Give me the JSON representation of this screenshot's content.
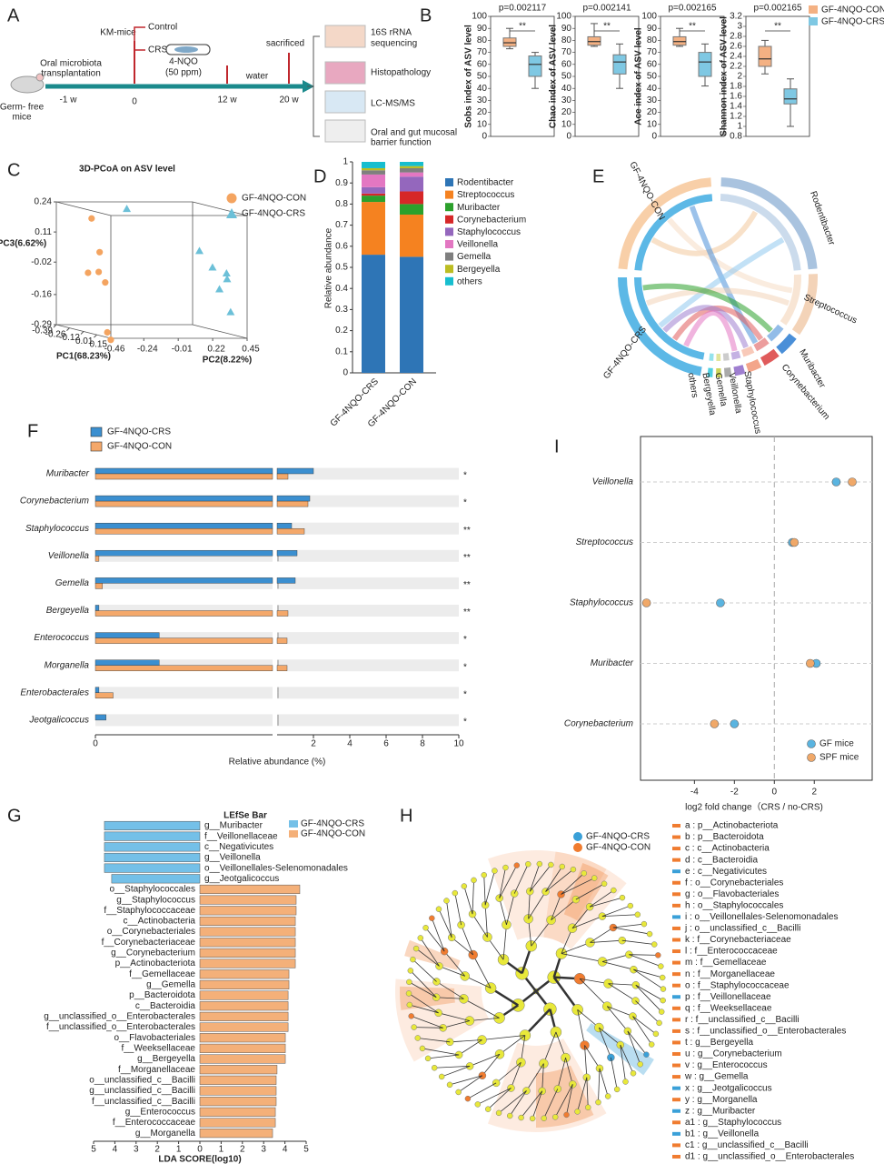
{
  "panel_labels": [
    "A",
    "B",
    "C",
    "D",
    "E",
    "F",
    "G",
    "H",
    "I"
  ],
  "diagram_a": {
    "mouse": [
      "Germ- free",
      "mice"
    ],
    "timeline": [
      "-1 w",
      "0",
      "12 w",
      "20 w"
    ],
    "transplant": [
      "Oral microbiota",
      "transplantation"
    ],
    "km": "KM-mice",
    "groups": [
      "Control",
      "CRS"
    ],
    "treatment": [
      "4-NQO",
      "(50 ppm)"
    ],
    "water": "water",
    "sacrificed": "sacrificed",
    "analyses": [
      [
        "16S rRNA",
        "sequencing"
      ],
      [
        "Histopathology"
      ],
      [
        "LC-MS/MS"
      ],
      [
        "Oral and gut mucosal",
        "barrier function"
      ]
    ]
  },
  "chart_data": [
    {
      "type": "box",
      "title": "p=0.002117",
      "y_label": "Sobs index of ASV level",
      "ylim": [
        0,
        100
      ],
      "yticks": [
        0,
        10,
        20,
        30,
        40,
        50,
        60,
        70,
        80,
        90,
        100
      ],
      "significance": "**",
      "series": [
        {
          "color": "#f4b183",
          "min": 73,
          "q1": 75,
          "median": 78,
          "q3": 82,
          "max": 90
        },
        {
          "color": "#7fc8e3",
          "min": 40,
          "q1": 50,
          "median": 60,
          "q3": 67,
          "max": 70
        }
      ]
    },
    {
      "type": "box",
      "title": "p=0.002141",
      "y_label": "Chao index of ASV level",
      "ylim": [
        0,
        100
      ],
      "yticks": [
        0,
        10,
        20,
        30,
        40,
        50,
        60,
        70,
        80,
        90,
        100
      ],
      "significance": "**",
      "series": [
        {
          "color": "#f4b183",
          "min": 75,
          "q1": 76,
          "median": 79,
          "q3": 83,
          "max": 94
        },
        {
          "color": "#7fc8e3",
          "min": 40,
          "q1": 52,
          "median": 62,
          "q3": 68,
          "max": 77
        }
      ]
    },
    {
      "type": "box",
      "title": "p=0.002165",
      "y_label": "Ace index of ASV level",
      "ylim": [
        0,
        100
      ],
      "yticks": [
        0,
        10,
        20,
        30,
        40,
        50,
        60,
        70,
        80,
        90,
        100
      ],
      "significance": "**",
      "series": [
        {
          "color": "#f4b183",
          "min": 75,
          "q1": 76,
          "median": 79,
          "q3": 83,
          "max": 90
        },
        {
          "color": "#7fc8e3",
          "min": 42,
          "q1": 50,
          "median": 62,
          "q3": 70,
          "max": 77
        }
      ]
    },
    {
      "type": "box",
      "title": "p=0.002165",
      "y_label": "Shannon index of ASV level",
      "ylim": [
        0.8,
        3.2
      ],
      "yticks": [
        0.8,
        1,
        1.2,
        1.4,
        1.6,
        1.8,
        2,
        2.2,
        2.4,
        2.6,
        2.8,
        3,
        3.2
      ],
      "significance": "**",
      "series": [
        {
          "name": "GF-4NQO-CON",
          "color": "#f4b183",
          "min": 2.05,
          "q1": 2.2,
          "median": 2.35,
          "q3": 2.6,
          "max": 2.72
        },
        {
          "name": "GF-4NQO-CRS",
          "color": "#7fc8e3",
          "min": 1.0,
          "q1": 1.45,
          "median": 1.55,
          "q3": 1.75,
          "max": 1.95
        }
      ]
    },
    {
      "type": "scatter3d",
      "title": "3D-PCoA on ASV level",
      "x_label": "PC1(68.23%)",
      "y_label": "PC2(8.22%)",
      "z_label": "PC3(6.62%)",
      "xlim": [
        -0.39,
        0.15
      ],
      "xticks": [
        -0.39,
        -0.26,
        -0.12,
        0.01,
        0.15
      ],
      "ylim": [
        -0.46,
        0.45
      ],
      "yticks": [
        -0.46,
        -0.24,
        -0.01,
        0.22,
        0.45
      ],
      "zlim": [
        -0.29,
        0.24
      ],
      "zticks": [
        0.24,
        0.11,
        -0.02,
        -0.16,
        -0.29
      ],
      "series": [
        {
          "name": "GF-4NQO-CON",
          "color": "#f4a460",
          "marker": "circle",
          "x": [
            -0.1,
            -0.05,
            0.0,
            0.05,
            -0.15,
            0.1,
            0.12
          ],
          "y": [
            -0.42,
            -0.4,
            -0.44,
            -0.43,
            -0.41,
            -0.45,
            -0.44
          ],
          "z": [
            0.2,
            0.06,
            -0.02,
            -0.06,
            -0.04,
            -0.27,
            -0.3
          ]
        },
        {
          "name": "GF-4NQO-CRS",
          "color": "#6cc0d8",
          "marker": "triangle",
          "x": [
            -0.3,
            -0.1,
            0.0,
            0.1,
            0.05,
            -0.05,
            0.12
          ],
          "y": [
            -0.05,
            0.3,
            0.32,
            0.35,
            0.38,
            0.4,
            0.36
          ],
          "z": [
            0.22,
            0.06,
            0.0,
            -0.04,
            -0.02,
            -0.1,
            -0.18
          ]
        }
      ]
    },
    {
      "type": "stacked_bar",
      "y_label": "Relative abundance",
      "categories": [
        "GF-4NQO-CRS",
        "GF-4NQO-CON"
      ],
      "ylim": [
        0,
        1
      ],
      "yticks": [
        0,
        0.1,
        0.2,
        0.3,
        0.4,
        0.5,
        0.6,
        0.7,
        0.8,
        0.9,
        1
      ],
      "series": [
        {
          "name": "Rodentibacter",
          "color": "#2e75b6",
          "values": [
            0.56,
            0.55
          ]
        },
        {
          "name": "Streptococcus",
          "color": "#f58220",
          "values": [
            0.25,
            0.2
          ]
        },
        {
          "name": "Muribacter",
          "color": "#2ca02c",
          "values": [
            0.03,
            0.05
          ]
        },
        {
          "name": "Corynebacterium",
          "color": "#d62728",
          "values": [
            0.01,
            0.06
          ]
        },
        {
          "name": "Staphylococcus",
          "color": "#9467bd",
          "values": [
            0.03,
            0.07
          ]
        },
        {
          "name": "Veillonella",
          "color": "#e377c2",
          "values": [
            0.06,
            0.02
          ]
        },
        {
          "name": "Gemella",
          "color": "#7f7f7f",
          "values": [
            0.02,
            0.02
          ]
        },
        {
          "name": "Bergeyella",
          "color": "#bcbd22",
          "values": [
            0.01,
            0.01
          ]
        },
        {
          "name": "others",
          "color": "#17becf",
          "values": [
            0.03,
            0.02
          ]
        }
      ]
    },
    {
      "type": "broken_hbar",
      "x_label": "Relative abundance (%)",
      "categories": [
        "Muribacter",
        "Corynebacterium",
        "Staphylococcus",
        "Veillonella",
        "Gemella",
        "Bergeyella",
        "Enterococcus",
        "Morganella",
        "Enterobacterales",
        "Jeotgalicoccus"
      ],
      "significance": [
        "*",
        "*",
        "**",
        "**",
        "**",
        "**",
        "*",
        "*",
        "*",
        "*"
      ],
      "xlim": [
        0,
        0.5
      ],
      "xticks": [
        0
      ],
      "x2lim": [
        0,
        10
      ],
      "x2ticks": [
        2,
        4,
        6,
        8,
        10
      ],
      "series": [
        {
          "name": "GF-4NQO-CRS",
          "color": "#3b8fd0",
          "values": [
            2.0,
            1.8,
            0.8,
            1.1,
            1.0,
            0.01,
            0.18,
            0.18,
            0.01,
            0.03
          ]
        },
        {
          "name": "GF-4NQO-CON",
          "color": "#f4a86a",
          "values": [
            0.6,
            1.7,
            1.5,
            0.01,
            0.02,
            0.6,
            0.55,
            0.55,
            0.05,
            0
          ]
        }
      ]
    },
    {
      "type": "dot",
      "x_label": "log2 fold change（CRS / no-CRS)",
      "categories": [
        "Veillonella",
        "Streptococcus",
        "Staphylococcus",
        "Muribacter",
        "Corynebacterium"
      ],
      "xlim": [
        -6.7,
        4.9
      ],
      "xticks": [
        -4,
        -2,
        0,
        2
      ],
      "legend": "lower right",
      "series": [
        {
          "name": "GF mice",
          "color": "#5ab4e0",
          "values": [
            3.1,
            0.9,
            -2.7,
            2.1,
            -2.0
          ]
        },
        {
          "name": "SPF mice",
          "color": "#f0a868",
          "values": [
            3.9,
            1.0,
            -6.4,
            1.8,
            -3.0
          ]
        }
      ]
    },
    {
      "type": "diverging_hbar",
      "title": "LEfSe Bar",
      "x_label": "LDA SCORE(log10)",
      "xlim": [
        -5,
        5
      ],
      "xticks": [
        {
          "value": -5,
          "label": "5"
        },
        {
          "value": -4,
          "label": "4"
        },
        {
          "value": -3,
          "label": "3"
        },
        {
          "value": -2,
          "label": "2"
        },
        {
          "value": -1,
          "label": "1"
        },
        0,
        1,
        2,
        3,
        4,
        5
      ],
      "series": [
        {
          "name": "GF-4NQO-CRS",
          "color": "#74c0e8"
        },
        {
          "name": "GF-4NQO-CON",
          "color": "#f4b079"
        }
      ],
      "categories": [
        "g__Muribacter",
        "f__Veillonellaceae",
        "c__Negativicutes",
        "g__Veillonella",
        "o__Veillonellales-Selenomonadales",
        "g__Jeotgalicoccus",
        "o__Staphylococcales",
        "g__Staphylococcus",
        "f__Staphylococcaceae",
        "c__Actinobacteria",
        "o__Corynebacteriales",
        "f__Corynebacteriaceae",
        "g__Corynebacterium",
        "p__Actinobacteriota",
        "f__Gemellaceae",
        "g__Gemella",
        "p__Bacteroidota",
        "c__Bacteroidia",
        "g__unclassified_o__Enterobacterales",
        "f__unclassified_o__Enterobacterales",
        "o__Flavobacteriales",
        "f__Weeksellaceae",
        "g__Bergeyella",
        "f__Morganellaceae",
        "o__unclassified_c__Bacilli",
        "g__unclassified_c__Bacilli",
        "f__unclassified_c__Bacilli",
        "g__Enterococcus",
        "f__Enterococcaceae",
        "g__Morganella"
      ],
      "values": [
        -4.49,
        -4.49,
        -4.49,
        -4.49,
        -4.49,
        -4.15,
        4.7,
        4.53,
        4.53,
        4.49,
        4.49,
        4.49,
        4.49,
        4.49,
        4.19,
        4.19,
        4.15,
        4.15,
        4.15,
        4.15,
        4.02,
        4.02,
        4.02,
        3.63,
        3.59,
        3.59,
        3.59,
        3.55,
        3.55,
        3.42
      ]
    }
  ],
  "chord_e": {
    "samples": [
      "GF-4NQO-CON",
      "GF-4NQO-CRS"
    ],
    "genera": [
      "Rodentibacter",
      "Streptococcus",
      "Muribacter",
      "Corynebacterium",
      "Staphylococcus",
      "Veillonella",
      "Gemella",
      "Bergeyella",
      "others"
    ]
  },
  "cladogram_h": {
    "legend": [
      {
        "name": "GF-4NQO-CRS",
        "color": "#3aa0d8"
      },
      {
        "name": "GF-4NQO-CON",
        "color": "#f07c30"
      }
    ],
    "keys": [
      {
        "text": "a : p__Actinobacteriota",
        "color": "#f07c30"
      },
      {
        "text": "b : p__Bacteroidota",
        "color": "#f07c30"
      },
      {
        "text": "c : c__Actinobacteria",
        "color": "#f07c30"
      },
      {
        "text": "d : c__Bacteroidia",
        "color": "#f07c30"
      },
      {
        "text": "e : c__Negativicutes",
        "color": "#3aa0d8"
      },
      {
        "text": "f : o__Corynebacteriales",
        "color": "#f07c30"
      },
      {
        "text": "g : o__Flavobacteriales",
        "color": "#f07c30"
      },
      {
        "text": "h : o__Staphylococcales",
        "color": "#f07c30"
      },
      {
        "text": "i : o__Veillonellales-Selenomonadales",
        "color": "#3aa0d8"
      },
      {
        "text": "j : o__unclassified_c__Bacilli",
        "color": "#f07c30"
      },
      {
        "text": "k : f__Corynebacteriaceae",
        "color": "#f07c30"
      },
      {
        "text": "l : f__Enterococcaceae",
        "color": "#f07c30"
      },
      {
        "text": "m : f__Gemellaceae",
        "color": "#f07c30"
      },
      {
        "text": "n : f__Morganellaceae",
        "color": "#f07c30"
      },
      {
        "text": "o : f__Staphylococcaceae",
        "color": "#f07c30"
      },
      {
        "text": "p : f__Veillonellaceae",
        "color": "#3aa0d8"
      },
      {
        "text": "q : f__Weeksellaceae",
        "color": "#f07c30"
      },
      {
        "text": "r : f__unclassified_c__Bacilli",
        "color": "#f07c30"
      },
      {
        "text": "s : f__unclassified_o__Enterobacterales",
        "color": "#f07c30"
      },
      {
        "text": "t : g__Bergeyella",
        "color": "#f07c30"
      },
      {
        "text": "u : g__Corynebacterium",
        "color": "#f07c30"
      },
      {
        "text": "v : g__Enterococcus",
        "color": "#f07c30"
      },
      {
        "text": "w : g__Gemella",
        "color": "#f07c30"
      },
      {
        "text": "x : g__Jeotgalicoccus",
        "color": "#3aa0d8"
      },
      {
        "text": "y : g__Morganella",
        "color": "#f07c30"
      },
      {
        "text": "z : g__Muribacter",
        "color": "#3aa0d8"
      },
      {
        "text": "a1 : g__Staphylococcus",
        "color": "#f07c30"
      },
      {
        "text": "b1 : g__Veillonella",
        "color": "#3aa0d8"
      },
      {
        "text": "c1 : g__unclassified_c__Bacilli",
        "color": "#f07c30"
      },
      {
        "text": "d1 : g__unclassified_o__Enterobacterales",
        "color": "#f07c30"
      }
    ]
  }
}
